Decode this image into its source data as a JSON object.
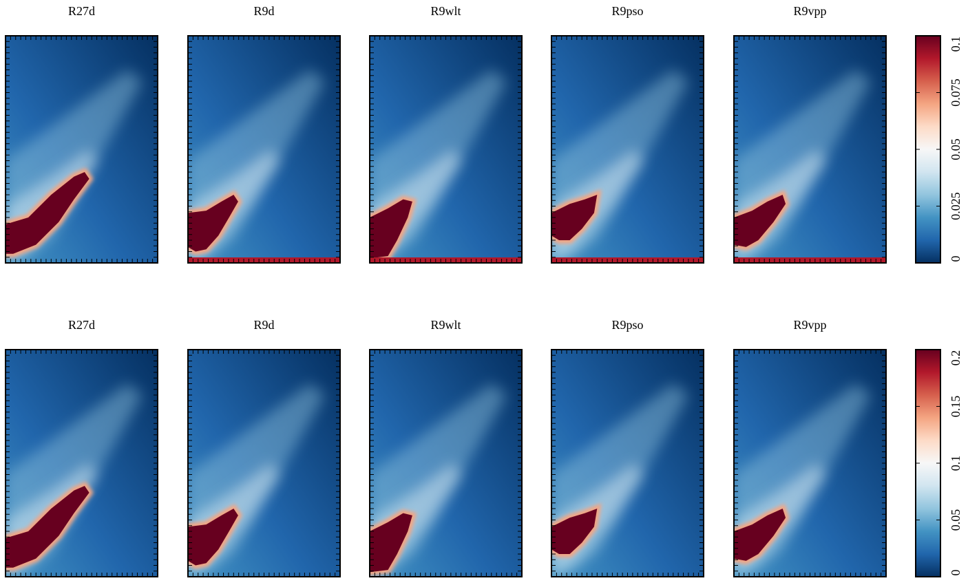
{
  "chart_data": [
    {
      "type": "heatmap",
      "panels": [
        "R27d",
        "R9d",
        "R9wlt",
        "R9pso",
        "R9vpp"
      ],
      "colorbar": {
        "lim": [
          0,
          0.1
        ],
        "ticks": [
          0,
          0.025,
          0.05,
          0.075,
          0.1
        ]
      },
      "colormap": [
        "#053061",
        "#2166ac",
        "#4393c3",
        "#92c5de",
        "#d1e5f0",
        "#f7f7f7",
        "#fddbc7",
        "#f4a582",
        "#d6604d",
        "#b2182b",
        "#67001f"
      ]
    },
    {
      "type": "heatmap",
      "panels": [
        "R27d",
        "R9d",
        "R9wlt",
        "R9pso",
        "R9vpp"
      ],
      "colorbar": {
        "lim": [
          0,
          0.2
        ],
        "ticks": [
          0,
          0.05,
          0.1,
          0.15,
          0.2
        ]
      },
      "colormap": [
        "#053061",
        "#2166ac",
        "#4393c3",
        "#92c5de",
        "#d1e5f0",
        "#f7f7f7",
        "#fddbc7",
        "#f4a582",
        "#d6604d",
        "#b2182b",
        "#67001f"
      ]
    }
  ]
}
